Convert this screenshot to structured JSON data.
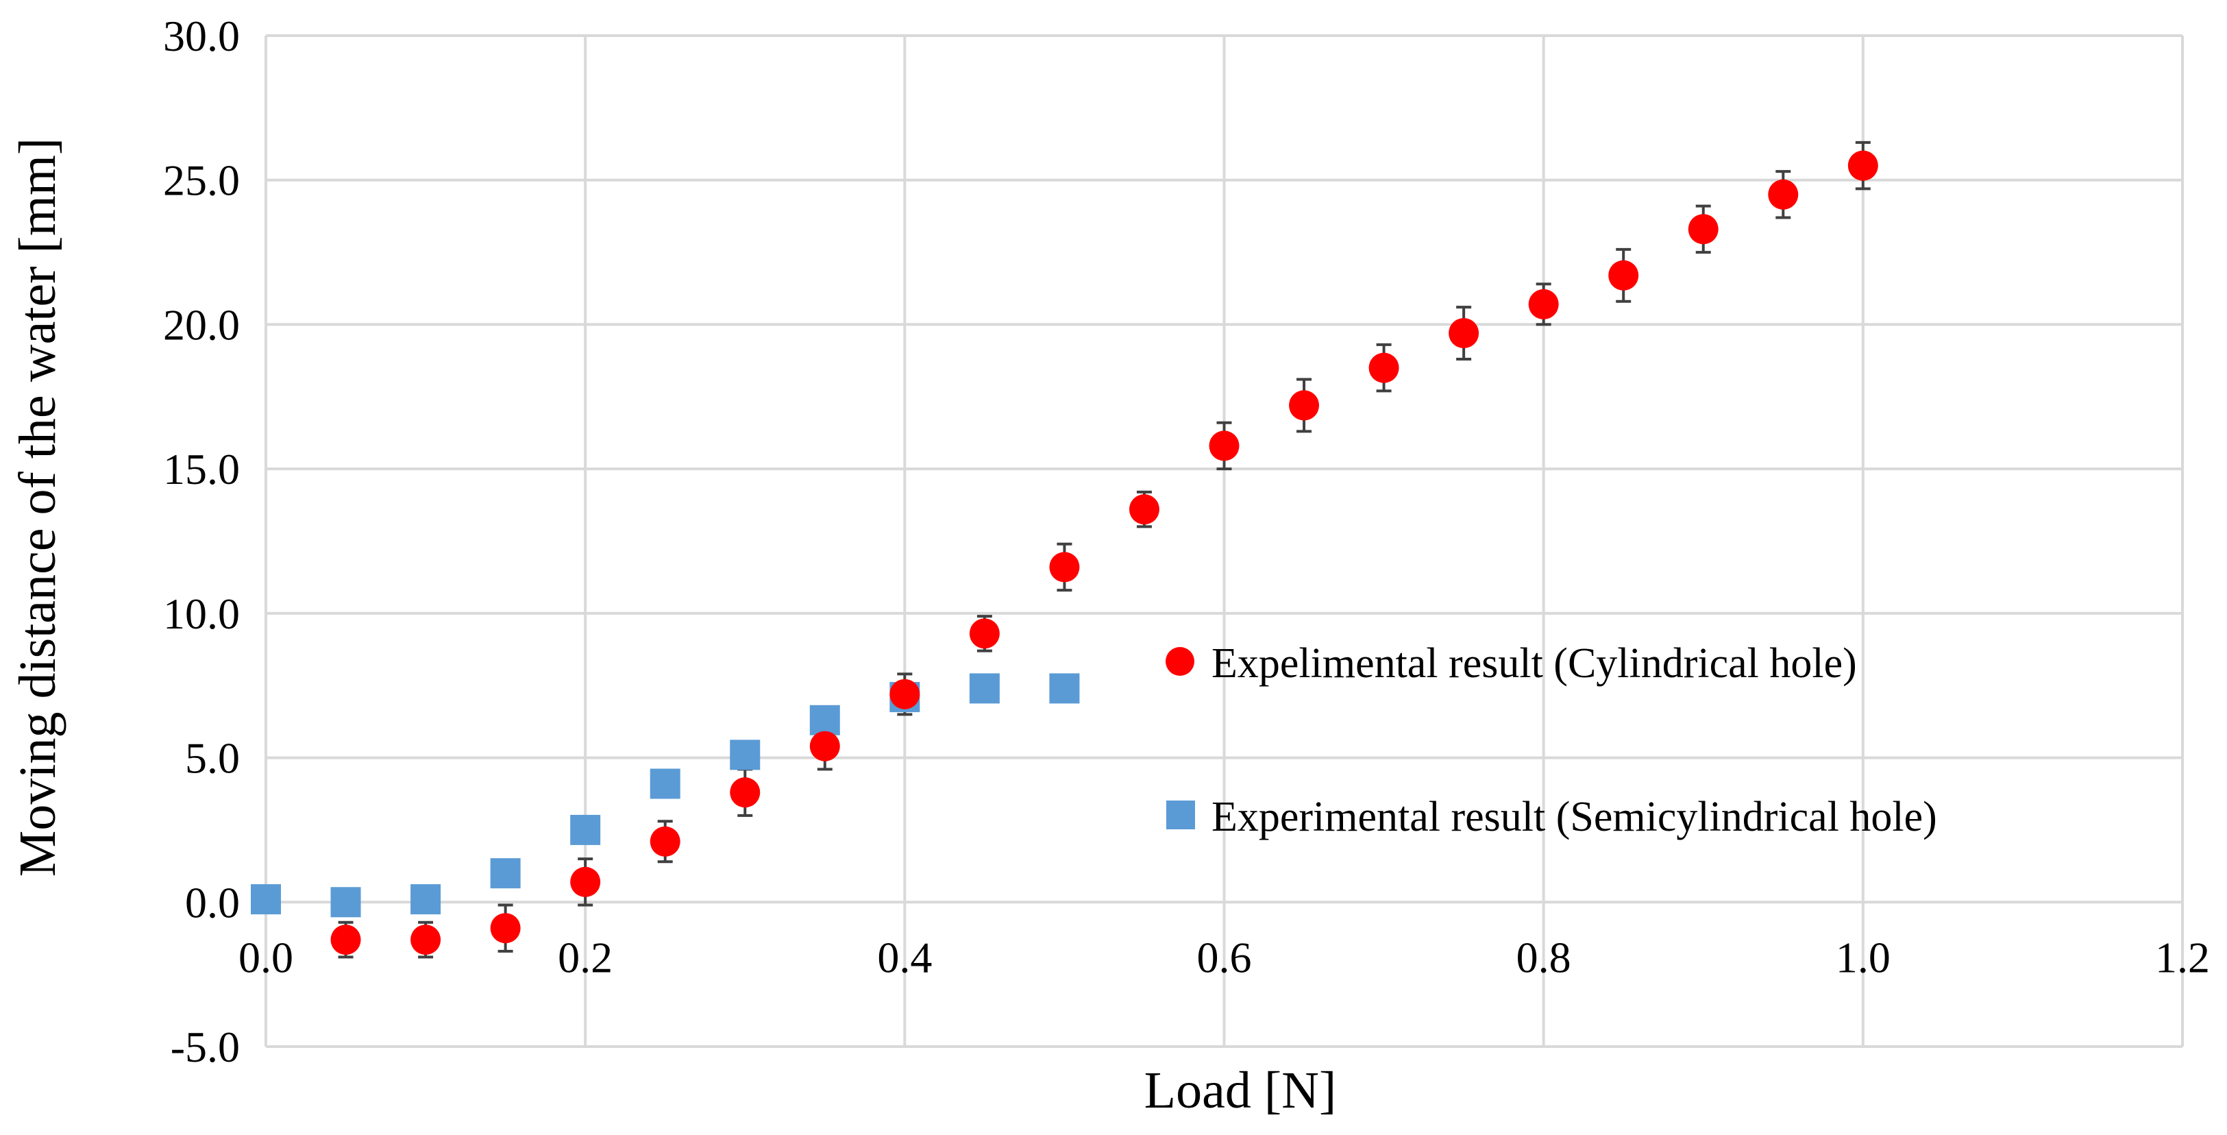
{
  "chart_data": {
    "type": "scatter",
    "title": "",
    "xlabel": "Load [N]",
    "ylabel": "Moving distance of the water [mm]",
    "xlim": [
      0.0,
      1.2
    ],
    "ylim": [
      -5.0,
      30.0
    ],
    "xticks": [
      0.0,
      0.2,
      0.4,
      0.6,
      0.8,
      1.0,
      1.2
    ],
    "yticks": [
      -5.0,
      0.0,
      5.0,
      10.0,
      15.0,
      20.0,
      25.0,
      30.0
    ],
    "xtick_labels": [
      "0.0",
      "0.2",
      "0.4",
      "0.6",
      "0.8",
      "1.0",
      "1.2"
    ],
    "ytick_labels": [
      "-5.0",
      "0.0",
      "5.0",
      "10.0",
      "15.0",
      "20.0",
      "25.0",
      "30.0"
    ],
    "grid": true,
    "legend_position": "right",
    "series": [
      {
        "name": "Expelimental result (Cylindrical hole)",
        "marker": "circle",
        "color": "#ff0000",
        "x": [
          0.05,
          0.1,
          0.15,
          0.2,
          0.25,
          0.3,
          0.35,
          0.4,
          0.45,
          0.5,
          0.55,
          0.6,
          0.65,
          0.7,
          0.75,
          0.8,
          0.85,
          0.9,
          0.95,
          1.0
        ],
        "y": [
          -1.3,
          -1.3,
          -0.9,
          0.7,
          2.1,
          3.8,
          5.4,
          7.2,
          9.3,
          11.6,
          13.6,
          15.8,
          17.2,
          18.5,
          19.7,
          20.7,
          21.7,
          23.3,
          24.5,
          25.5
        ],
        "error": [
          0.6,
          0.6,
          0.8,
          0.8,
          0.7,
          0.8,
          0.8,
          0.7,
          0.6,
          0.8,
          0.6,
          0.8,
          0.9,
          0.8,
          0.9,
          0.7,
          0.9,
          0.8,
          0.8,
          0.8
        ]
      },
      {
        "name": "Experimental result (Semicylindrical hole)",
        "marker": "square",
        "color": "#5b9bd5",
        "x": [
          0.0,
          0.05,
          0.1,
          0.15,
          0.2,
          0.25,
          0.3,
          0.35,
          0.4,
          0.45,
          0.5
        ],
        "y": [
          0.1,
          0.0,
          0.1,
          1.0,
          2.5,
          4.1,
          5.1,
          6.3,
          7.1,
          7.4,
          7.4
        ]
      }
    ]
  }
}
